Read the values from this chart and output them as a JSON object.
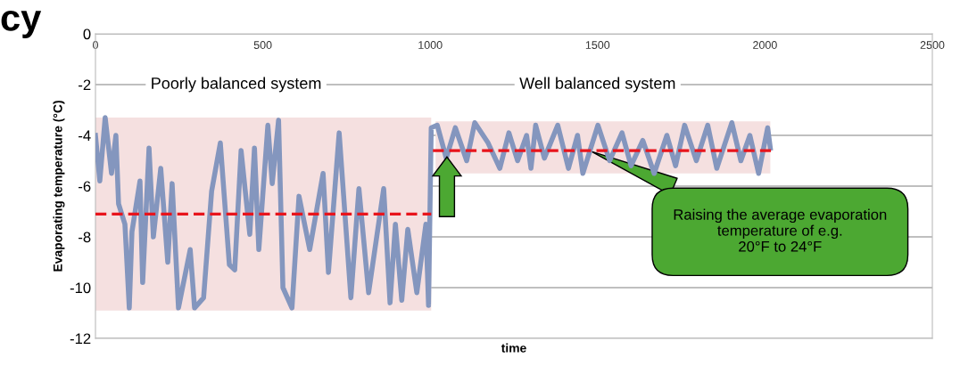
{
  "chart_data": {
    "type": "line",
    "title": "cy",
    "xlabel": "time",
    "ylabel": "Evaporating temperature (°C)",
    "xlim": [
      0,
      2500
    ],
    "xticks": [
      0,
      500,
      1000,
      1500,
      2000,
      2500
    ],
    "ylim": [
      -12,
      0
    ],
    "yticks": [
      0,
      -2,
      -4,
      -6,
      -8,
      -10,
      -12
    ],
    "grid": "y",
    "series": [
      {
        "color": "#8496be",
        "x": [
          0,
          13,
          29,
          48,
          61,
          69,
          88,
          101,
          109,
          133,
          141,
          160,
          173,
          195,
          216,
          229,
          248,
          283,
          296,
          323,
          347,
          373,
          400,
          416,
          435,
          461,
          475,
          488,
          515,
          528,
          547,
          560,
          587,
          608,
          640,
          680,
          696,
          728,
          763,
          787,
          816,
          861,
          880,
          896,
          915,
          933,
          960,
          987,
          995,
          1003,
          1021,
          1048,
          1075,
          1109,
          1133,
          1173,
          1208,
          1235,
          1261,
          1288,
          1301,
          1315,
          1341,
          1381,
          1413,
          1440,
          1456,
          1501,
          1536,
          1573,
          1600,
          1635,
          1669,
          1707,
          1733,
          1760,
          1795,
          1829,
          1856,
          1901,
          1928,
          1955,
          1981,
          2008,
          2016
        ],
        "values": [
          -4.0,
          -5.8,
          -3.3,
          -5.5,
          -4.0,
          -6.7,
          -7.5,
          -10.8,
          -7.8,
          -5.8,
          -9.8,
          -4.5,
          -8.0,
          -5.3,
          -9.0,
          -5.9,
          -10.8,
          -8.5,
          -10.8,
          -10.4,
          -6.2,
          -4.3,
          -9.1,
          -9.3,
          -4.6,
          -7.9,
          -4.5,
          -8.5,
          -3.6,
          -5.9,
          -3.4,
          -10.0,
          -10.8,
          -6.4,
          -8.5,
          -5.5,
          -9.4,
          -3.9,
          -10.4,
          -6.1,
          -10.2,
          -6.1,
          -10.6,
          -7.5,
          -10.5,
          -7.7,
          -10.2,
          -7.5,
          -10.7,
          -3.7,
          -3.6,
          -4.9,
          -3.7,
          -5.0,
          -3.5,
          -4.3,
          -5.3,
          -3.9,
          -5.0,
          -4.0,
          -5.3,
          -3.6,
          -4.9,
          -3.6,
          -5.3,
          -4.0,
          -5.5,
          -3.6,
          -5.0,
          -3.9,
          -5.2,
          -4.2,
          -5.5,
          -4.0,
          -5.2,
          -3.6,
          -5.0,
          -3.6,
          -5.3,
          -3.5,
          -5.0,
          -4.0,
          -5.5,
          -3.7,
          -4.5
        ]
      },
      {
        "type": "line",
        "color": "#e8141c",
        "line_style": "dashed",
        "x": [
          0,
          1003
        ],
        "values": [
          -7.1,
          -7.1
        ]
      },
      {
        "type": "line",
        "color": "#e8141c",
        "line_style": "dashed",
        "x": [
          1008,
          2027
        ],
        "values": [
          -4.6,
          -4.6
        ]
      }
    ],
    "annotations": [
      "Poorly balanced system",
      "Well balanced system",
      "Raising the average evaporation\ntemperature of e.g.\n20°F to 24°F"
    ]
  }
}
